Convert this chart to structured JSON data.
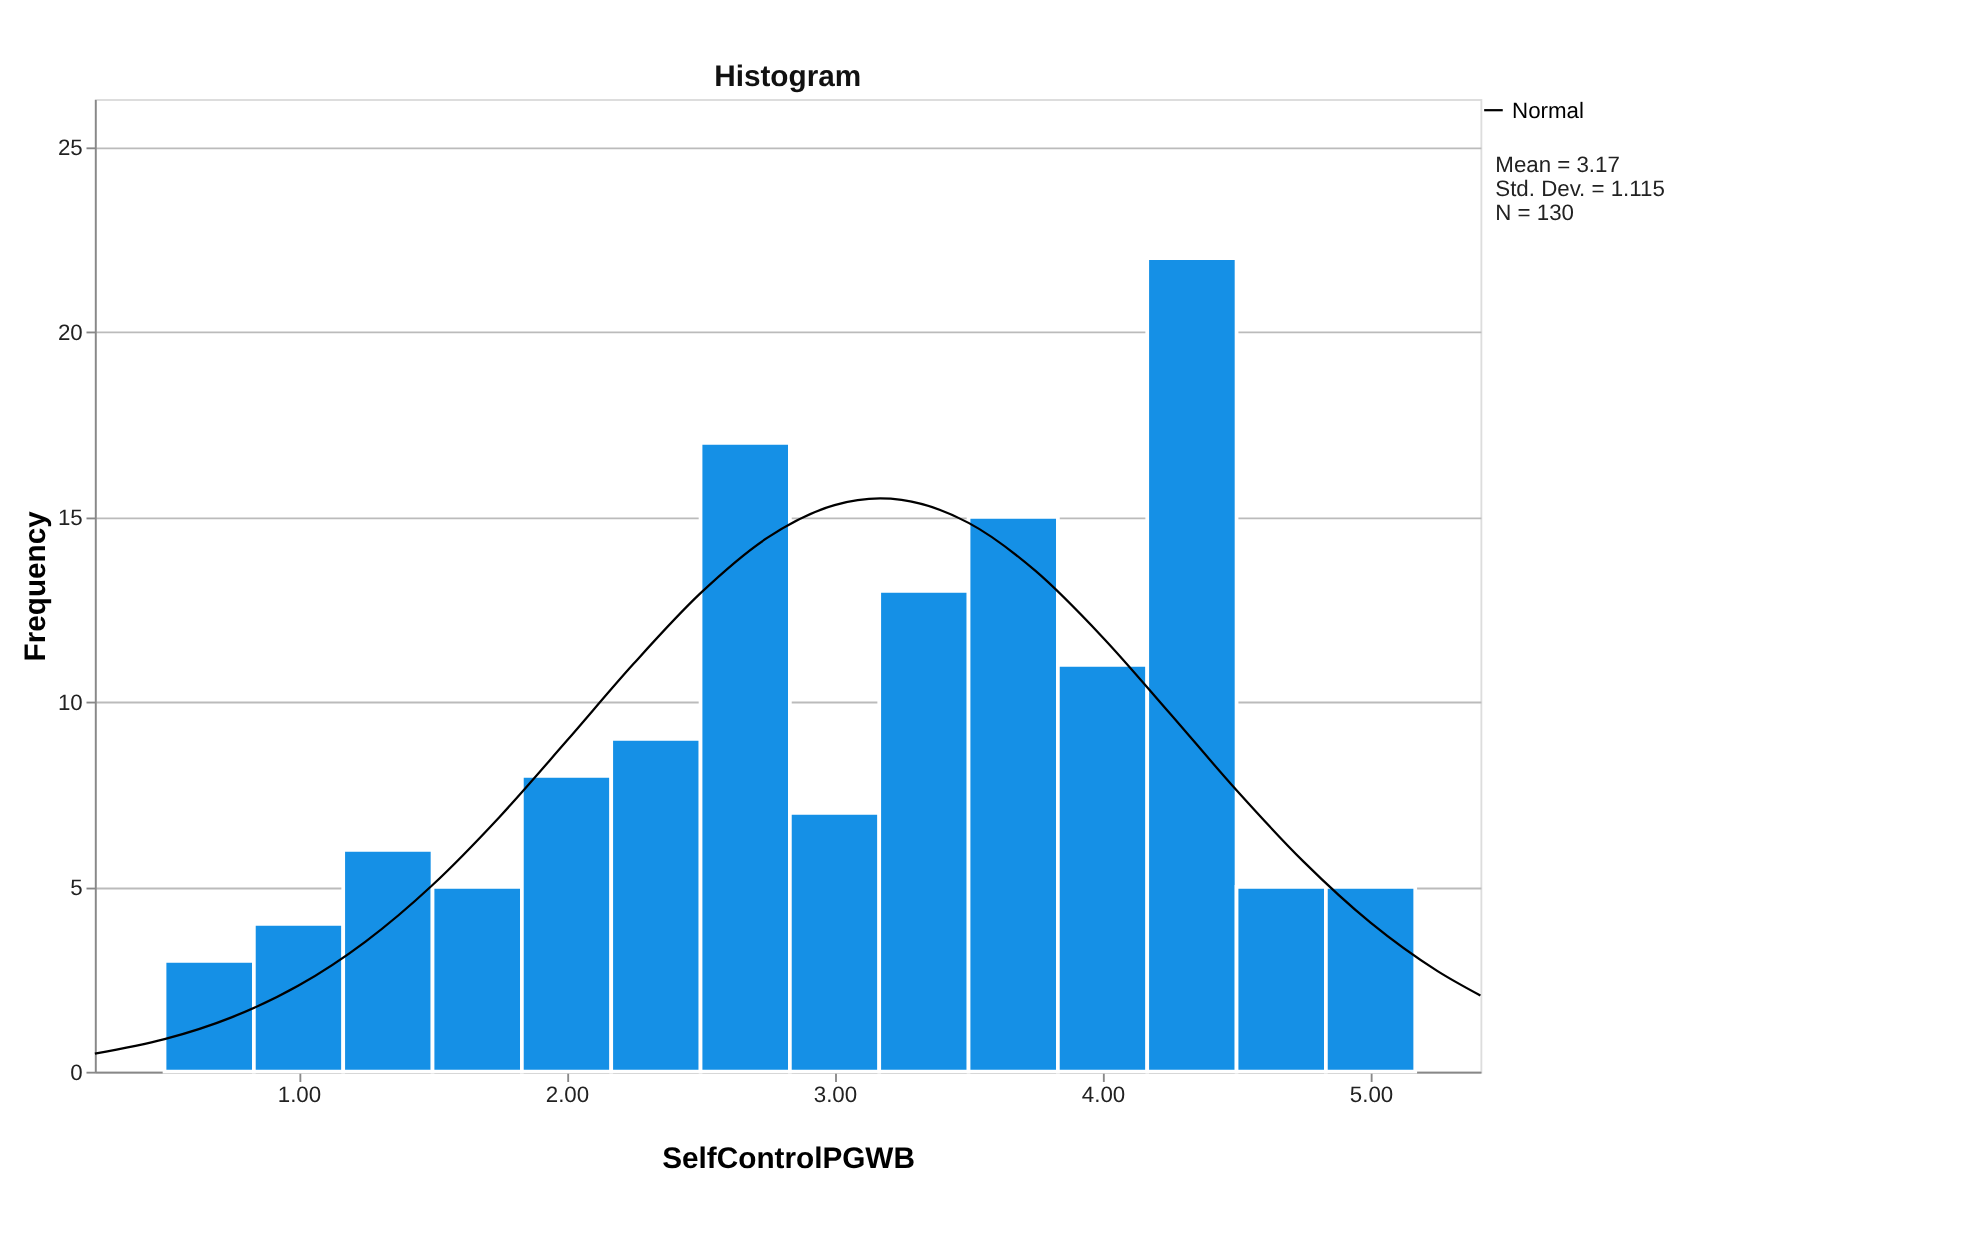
{
  "chart_data": {
    "type": "histogram",
    "title": "Histogram",
    "xlabel": "SelfControlPGWB",
    "ylabel": "Frequency",
    "bins": [
      0.5,
      0.8333,
      1.1667,
      1.5,
      1.8333,
      2.1667,
      2.5,
      2.8333,
      3.1667,
      3.5,
      3.8333,
      4.1667,
      4.5,
      4.8333,
      5.1667
    ],
    "values": [
      3,
      4,
      6,
      5,
      8,
      9,
      17,
      7,
      13,
      15,
      11,
      22,
      5,
      5
    ],
    "color": "#1590e6",
    "series": [
      {
        "name": "Normal",
        "type": "line",
        "color": "#000000",
        "x": [
          0.24,
          0.5,
          0.75,
          1.0,
          1.25,
          1.5,
          1.75,
          2.0,
          2.25,
          2.5,
          2.75,
          3.0,
          3.17,
          3.25,
          3.5,
          3.75,
          4.0,
          4.25,
          4.5,
          4.75,
          5.0,
          5.25,
          5.41
        ],
        "values": [
          0.49,
          0.88,
          1.47,
          2.33,
          3.52,
          5.05,
          6.89,
          8.94,
          11.03,
          12.94,
          14.44,
          15.32,
          15.5,
          15.46,
          14.84,
          13.54,
          11.75,
          9.7,
          7.61,
          5.68,
          4.03,
          2.72,
          2.06
        ]
      }
    ],
    "xlim": [
      0.24,
      5.41
    ],
    "xticks": [
      {
        "value": 1,
        "label": "1.00"
      },
      {
        "value": 2,
        "label": "2.00"
      },
      {
        "value": 3,
        "label": "3.00"
      },
      {
        "value": 4,
        "label": "4.00"
      },
      {
        "value": 5,
        "label": "5.00"
      }
    ],
    "ylim": [
      0,
      26.3
    ],
    "yticks": [
      0,
      5,
      10,
      15,
      20,
      25
    ],
    "grid": "y",
    "legend": "top right",
    "marker": "none",
    "line_style": "solid",
    "annotations": [
      "Mean = 3.17",
      "Std. Dev. = 1.115",
      "N = 130"
    ]
  }
}
